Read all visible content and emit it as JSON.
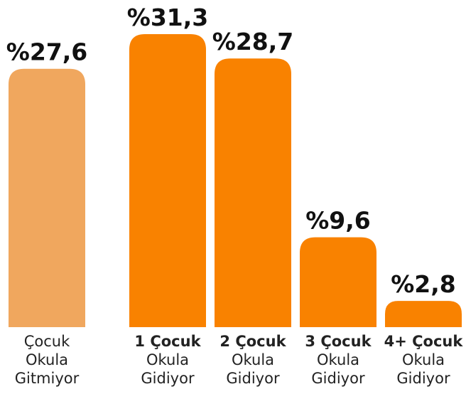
{
  "chart_data": {
    "type": "bar",
    "categories": [
      [
        "Çocuk",
        "Okula",
        "Gitmiyor"
      ],
      [
        "1 Çocuk",
        "Okula",
        "Gidiyor"
      ],
      [
        "2 Çocuk",
        "Okula",
        "Gidiyor"
      ],
      [
        "3 Çocuk",
        "Okula",
        "Gidiyor"
      ],
      [
        "4+ Çocuk",
        "Okula",
        "Gidiyor"
      ]
    ],
    "values": [
      27.6,
      31.3,
      28.7,
      9.6,
      2.8
    ],
    "value_labels": [
      "%27,6",
      "%31,3",
      "%28,7",
      "%9,6",
      "%2,8"
    ],
    "colors": [
      "#f0a75e",
      "#f98200",
      "#f98200",
      "#f98200",
      "#f98200"
    ]
  }
}
